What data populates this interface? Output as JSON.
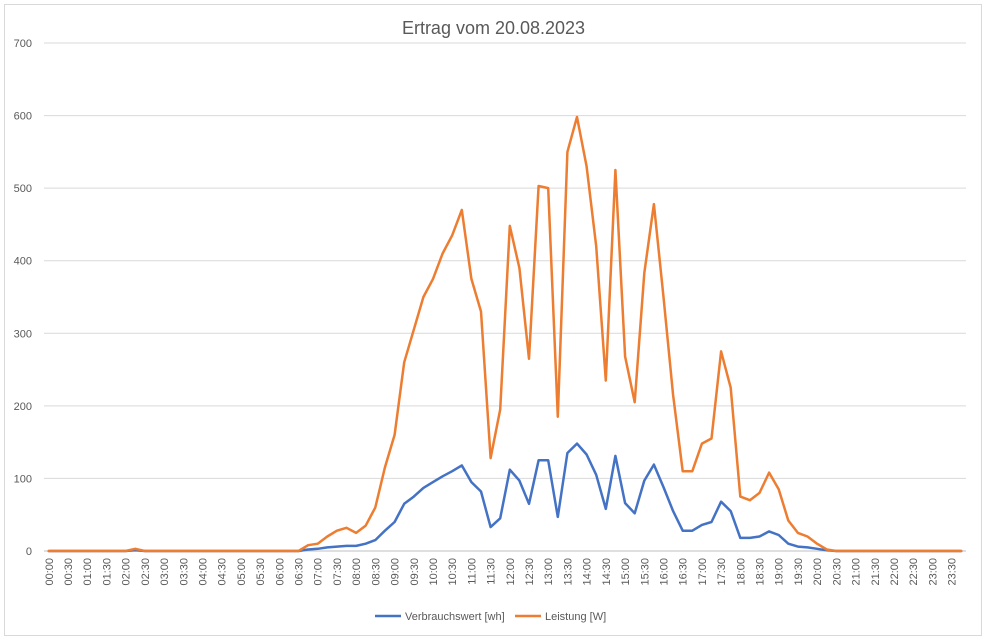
{
  "chart_data": {
    "type": "line",
    "title": "Ertrag vom 20.08.2023",
    "xlabel": "",
    "ylabel": "",
    "ylim": [
      0,
      700
    ],
    "yticks": [
      0,
      100,
      200,
      300,
      400,
      500,
      600,
      700
    ],
    "grid": true,
    "legend": "bottom",
    "categories": [
      "00:00",
      "00:15",
      "00:30",
      "00:45",
      "01:00",
      "01:15",
      "01:30",
      "01:45",
      "02:00",
      "02:15",
      "02:30",
      "02:45",
      "03:00",
      "03:15",
      "03:30",
      "03:45",
      "04:00",
      "04:15",
      "04:30",
      "04:45",
      "05:00",
      "05:15",
      "05:30",
      "05:45",
      "06:00",
      "06:15",
      "06:30",
      "06:45",
      "07:00",
      "07:15",
      "07:30",
      "07:45",
      "08:00",
      "08:15",
      "08:30",
      "08:45",
      "09:00",
      "09:15",
      "09:30",
      "09:45",
      "10:00",
      "10:15",
      "10:30",
      "10:45",
      "11:00",
      "11:15",
      "11:30",
      "11:45",
      "12:00",
      "12:15",
      "12:30",
      "12:45",
      "13:00",
      "13:15",
      "13:30",
      "13:45",
      "14:00",
      "14:15",
      "14:30",
      "14:45",
      "15:00",
      "15:15",
      "15:30",
      "15:45",
      "16:00",
      "16:15",
      "16:30",
      "16:45",
      "17:00",
      "17:15",
      "17:30",
      "17:45",
      "18:00",
      "18:15",
      "18:30",
      "18:45",
      "19:00",
      "19:15",
      "19:30",
      "19:45",
      "20:00",
      "20:15",
      "20:30",
      "20:45",
      "21:00",
      "21:15",
      "21:30",
      "21:45",
      "22:00",
      "22:15",
      "22:30",
      "22:45",
      "23:00",
      "23:15",
      "23:30",
      "23:45"
    ],
    "tick_labels": [
      "00:00",
      "00:30",
      "01:00",
      "01:30",
      "02:00",
      "02:30",
      "03:00",
      "03:30",
      "04:00",
      "04:30",
      "05:00",
      "05:30",
      "06:00",
      "06:30",
      "07:00",
      "07:30",
      "08:00",
      "08:30",
      "09:00",
      "09:30",
      "10:00",
      "10:30",
      "11:00",
      "11:30",
      "12:00",
      "12:30",
      "13:00",
      "13:30",
      "14:00",
      "14:30",
      "15:00",
      "15:30",
      "16:00",
      "16:30",
      "17:00",
      "17:30",
      "18:00",
      "18:30",
      "19:00",
      "19:30",
      "20:00",
      "20:30",
      "21:00",
      "21:30",
      "22:00",
      "22:30",
      "23:00",
      "23:30"
    ],
    "series": [
      {
        "name": "Verbrauchswert [wh]",
        "color": "#4472c4",
        "values": [
          0,
          0,
          0,
          0,
          0,
          0,
          0,
          0,
          0,
          1,
          0,
          0,
          0,
          0,
          0,
          0,
          0,
          0,
          0,
          0,
          0,
          0,
          0,
          0,
          0,
          0,
          0,
          2,
          3,
          5,
          6,
          7,
          7,
          10,
          15,
          28,
          40,
          65,
          75,
          87,
          95,
          103,
          110,
          118,
          95,
          82,
          33,
          45,
          112,
          97,
          65,
          125,
          125,
          47,
          135,
          148,
          133,
          105,
          58,
          131,
          66,
          52,
          97,
          119,
          88,
          55,
          28,
          28,
          36,
          40,
          68,
          55,
          18,
          18,
          20,
          27,
          22,
          10,
          6,
          5,
          3,
          1,
          0,
          0,
          0,
          0,
          0,
          0,
          0,
          0,
          0,
          0,
          0,
          0,
          0,
          0
        ]
      },
      {
        "name": "Leistung [W]",
        "color": "#ed7d31",
        "values": [
          0,
          0,
          0,
          0,
          0,
          0,
          0,
          0,
          0,
          3,
          0,
          0,
          0,
          0,
          0,
          0,
          0,
          0,
          0,
          0,
          0,
          0,
          0,
          0,
          0,
          0,
          0,
          8,
          10,
          20,
          28,
          32,
          25,
          35,
          60,
          115,
          160,
          260,
          305,
          350,
          375,
          410,
          435,
          470,
          375,
          330,
          128,
          195,
          448,
          390,
          265,
          503,
          500,
          185,
          550,
          598,
          530,
          420,
          235,
          525,
          268,
          205,
          383,
          478,
          350,
          215,
          110,
          110,
          148,
          155,
          275,
          225,
          75,
          70,
          80,
          108,
          85,
          42,
          25,
          20,
          10,
          2,
          0,
          0,
          0,
          0,
          0,
          0,
          0,
          0,
          0,
          0,
          0,
          0,
          0,
          0
        ]
      }
    ]
  }
}
